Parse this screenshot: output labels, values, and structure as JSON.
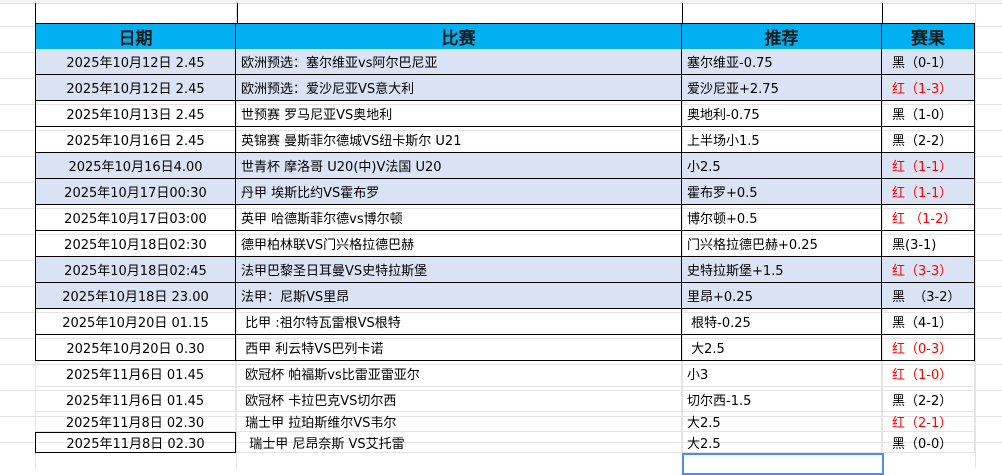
{
  "headers": {
    "date": "日期",
    "match": "比赛",
    "pick": "推荐",
    "result": "赛果"
  },
  "colors": {
    "header_bg": "#00b0f0",
    "shade": "#dae3f3",
    "red": "#ff0000",
    "black": "#000000",
    "selection": "#4a8cf0"
  },
  "rows": [
    {
      "date": "2025年10月12日 2.45",
      "match": "欧洲预选：塞尔维亚vs阿尔巴尼亚",
      "pick": "塞尔维亚-0.75",
      "result": "黑（0-1）",
      "outcome": "black"
    },
    {
      "date": "2025年10月12日 2.45",
      "match": "欧洲预选：爱沙尼亚VS意大利",
      "pick": "爱沙尼亚+2.75",
      "result": "红（1-3）",
      "outcome": "red"
    },
    {
      "date": "2025年10月13日 2.45",
      "match": "世预赛 罗马尼亚VS奥地利",
      "pick": "奥地利-0.75",
      "result": "黑（1-0）",
      "outcome": "black"
    },
    {
      "date": "2025年10月16日 2.45",
      "match": "英锦赛 曼斯菲尔德城VS纽卡斯尔 U21",
      "pick": "上半场小1.5",
      "result": "黑（2-2）",
      "outcome": "black"
    },
    {
      "date": "2025年10月16日4.00",
      "match": "世青杯 摩洛哥 U20(中)V法国 U20",
      "pick": "小2.5",
      "result": "红（1-1）",
      "outcome": "red"
    },
    {
      "date": "2025年10月17日00:30",
      "match": "丹甲 埃斯比约VS霍布罗",
      "pick": "霍布罗+0.5",
      "result": "红（1-1）",
      "outcome": "red"
    },
    {
      "date": "2025年10月17日03:00",
      "match": "英甲 哈德斯菲尔德vs博尔顿",
      "pick": "博尔顿+0.5",
      "result": "红 （1-2）",
      "outcome": "red"
    },
    {
      "date": "2025年10月18日02:30",
      "match": "德甲柏林联VS门兴格拉德巴赫",
      "pick": "门兴格拉德巴赫+0.25",
      "result": "黑(3-1)",
      "outcome": "black"
    },
    {
      "date": "2025年10月18日02:45",
      "match": "法甲巴黎圣日耳曼VS史特拉斯堡",
      "pick": "史特拉斯堡+1.5",
      "result": "红（3-3）",
      "outcome": "red"
    },
    {
      "date": "2025年10月18日 23.00",
      "match": "法甲：尼斯VS里昂",
      "pick": "里昂+0.25",
      "result": "黑  （3-2）",
      "outcome": "black"
    },
    {
      "date": "2025年10月20日 01.15",
      "match": " 比甲 :祖尔特瓦雷根VS根特",
      "pick": " 根特-0.25",
      "result": "黑（4-1）",
      "outcome": "black"
    },
    {
      "date": "2025年10月20日 0.30",
      "match": " 西甲 利云特VS巴列卡诺",
      "pick": " 大2.5",
      "result": "红（0-3）",
      "outcome": "red"
    },
    {
      "date": "2025年11月6日 01.45",
      "match": " 欧冠杯 帕福斯vs比雷亚雷亚尔",
      "pick": "小3",
      "result": "红（1-0）",
      "outcome": "red"
    },
    {
      "date": "2025年11月6日 01.45",
      "match": " 欧冠杯 卡拉巴克VS切尔西",
      "pick": "切尔西-1.5",
      "result": "黑（2-2）",
      "outcome": "black"
    },
    {
      "date": "2025年11月8日 02.30",
      "match": " 瑞士甲 拉珀斯维尔VS韦尔",
      "pick": "大2.5",
      "result": "红（2-1）",
      "outcome": "red"
    },
    {
      "date": "2025年11月8日 02.30",
      "match": "  瑞士甲 尼昂奈斯 VS艾托雷",
      "pick": "大2.5",
      "result": "黑（0-0）",
      "outcome": "black"
    }
  ]
}
